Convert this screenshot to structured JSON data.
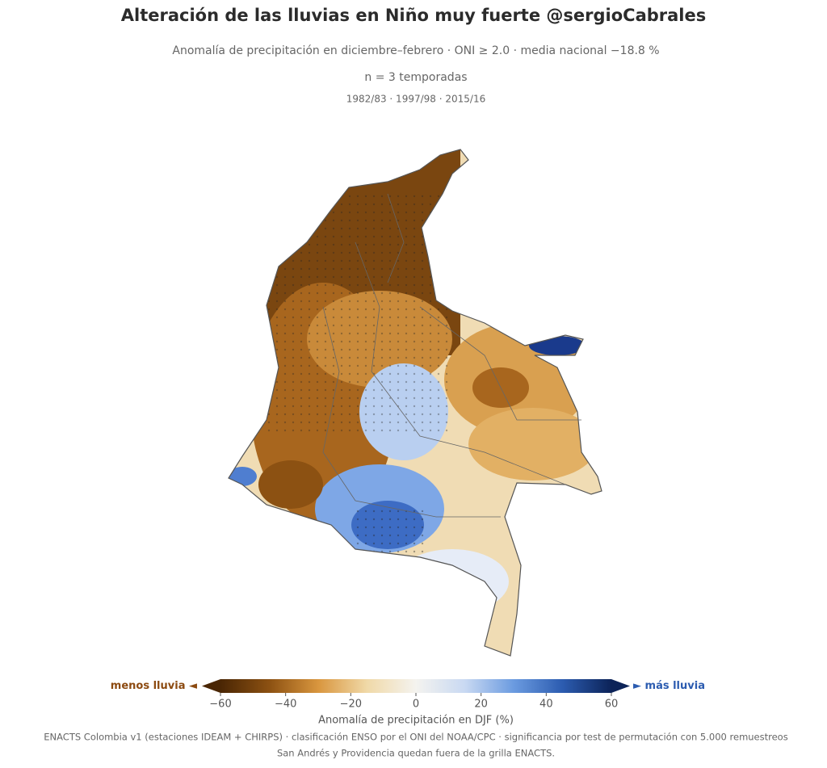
{
  "map": {
    "title": "Alteración de las lluvias en Niño muy fuerte @sergioCabrales",
    "subtitle": "Anomalía de precipitación en diciembre–febrero · ONI ≥ 2.0 · media nacional −18.8 %",
    "sample": "n = 3 temporadas",
    "seasons": "1982/83 · 1997/98 · 2015/16",
    "colorbar": {
      "lim": [
        -60,
        60
      ],
      "ticks": [
        {
          "value": -60,
          "label": "−60"
        },
        {
          "value": -40,
          "label": "−40"
        },
        {
          "value": -20,
          "label": "−20"
        },
        0,
        20,
        40,
        60
      ],
      "colors": [
        "#4a2604",
        "#8c5112",
        "#d9963e",
        "#f0d9a8",
        "#f4f3ef",
        "#c9d9f2",
        "#6b9be0",
        "#2c5cb0",
        "#0c2358"
      ],
      "label": "Anomalía de precipitación en DJF (%)",
      "left_label": "menos lluvia ◄",
      "right_label": "► más lluvia"
    },
    "footer": [
      "ENACTS Colombia v1 (estaciones IDEAM + CHIRPS) · clasificación ENSO por el ONI del NOAA/CPC · significancia por test de permutación con 5.000 remuestreos",
      "San Andrés y Providencia quedan fuera de la grilla ENACTS."
    ]
  }
}
